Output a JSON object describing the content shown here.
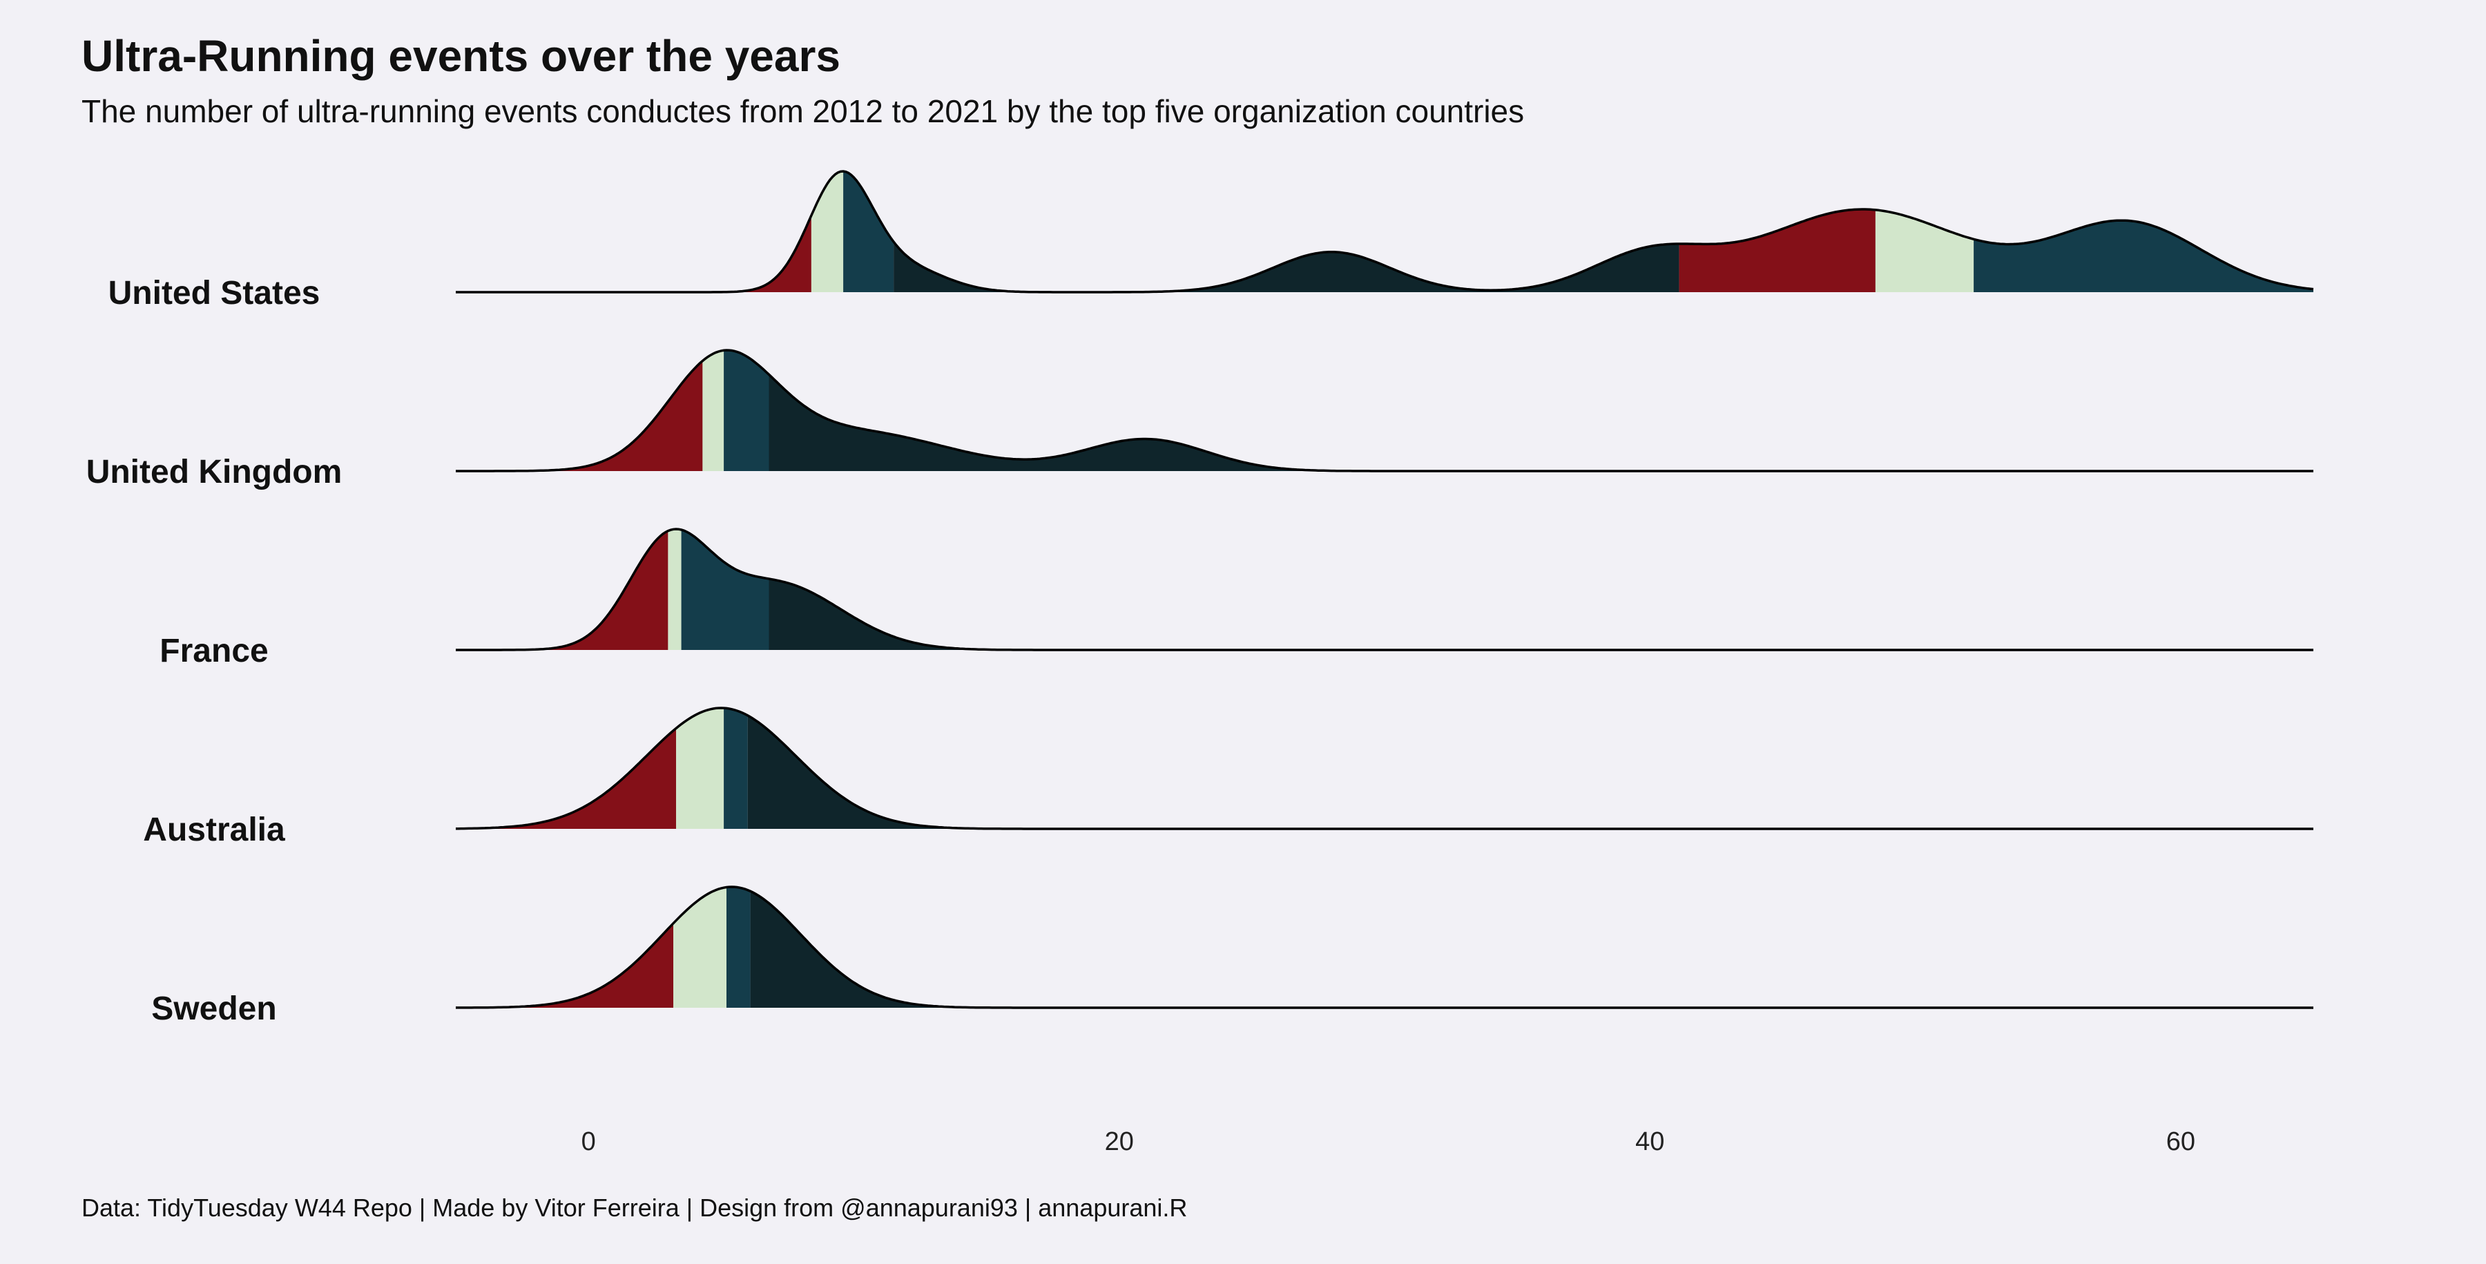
{
  "chart_data": {
    "type": "ridgeline",
    "title": "Ultra-Running events over the years",
    "subtitle": "The number of ultra-running events conductes from 2012 to 2021 by the top five organization countries",
    "caption": "Data: TidyTuesday W44 Repo | Made by Vitor Ferreira | Design from @annapurani93 | annapurani.R",
    "xlim": [
      -5,
      65
    ],
    "xticks": [
      0,
      20,
      40,
      60
    ],
    "xlabel": "",
    "ylabel": "",
    "grid": false,
    "legend": "none",
    "quantile_colors": [
      "#841018",
      "#d2e6cb",
      "#143d4b",
      "#0f252b"
    ],
    "series": [
      {
        "name": "United States",
        "components": [
          [
            1,
            9.5,
            1.2
          ],
          [
            0.2,
            12,
            1.5
          ],
          [
            0.35,
            28,
            2.2
          ],
          [
            0.32,
            40,
            2.2
          ],
          [
            0.72,
            48,
            3.8
          ],
          [
            0.6,
            58,
            2.8
          ]
        ],
        "quantiles": [
          8.4,
          9.6,
          11.5,
          41.1,
          48.5,
          52.2
        ]
      },
      {
        "name": "United Kingdom",
        "components": [
          [
            1,
            5,
            2
          ],
          [
            0.37,
            10,
            3.5
          ],
          [
            0.3,
            21,
            2.3
          ]
        ],
        "quantiles": [
          4.3,
          5.1,
          6.8
        ]
      },
      {
        "name": "France",
        "components": [
          [
            0.82,
            3,
            1.5
          ],
          [
            0.55,
            7,
            2.5
          ]
        ],
        "quantiles": [
          3,
          3.5,
          6.8
        ]
      },
      {
        "name": "Australia",
        "components": [
          [
            1,
            5,
            2.8
          ]
        ],
        "quantiles": [
          3.3,
          5.1,
          6
        ]
      },
      {
        "name": "Sweden",
        "components": [],
        "quantiles": []
      }
    ]
  }
}
